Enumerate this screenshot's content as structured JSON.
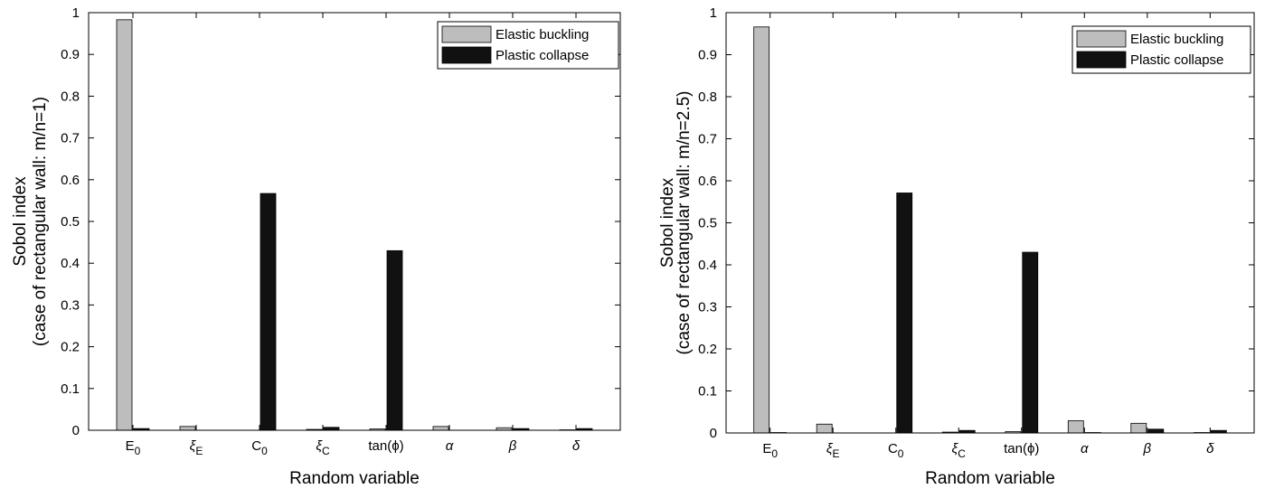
{
  "colors": {
    "elastic": "#bdbdbd",
    "plastic": "#111111",
    "axis": "#000000",
    "background": "#ffffff"
  },
  "chart_data": [
    {
      "type": "bar",
      "categories": [
        {
          "base": "E",
          "sub": "0"
        },
        {
          "base": "ξ",
          "sub": "E"
        },
        {
          "base": "C",
          "sub": "0"
        },
        {
          "base": "ξ",
          "sub": "C"
        },
        {
          "base": "tan(ϕ)",
          "sub": ""
        },
        {
          "base": "α",
          "sub": ""
        },
        {
          "base": "β",
          "sub": ""
        },
        {
          "base": "δ",
          "sub": ""
        }
      ],
      "series": [
        {
          "name": "Elastic buckling",
          "values": [
            0.983,
            0.009,
            0.0,
            0.002,
            0.003,
            0.009,
            0.006,
            0.001
          ]
        },
        {
          "name": "Plastic collapse",
          "values": [
            0.004,
            0.0,
            0.567,
            0.007,
            0.43,
            0.0,
            0.004,
            0.004
          ]
        }
      ],
      "xlabel": "Random variable",
      "ylabel": [
        "Sobol index",
        "(case of rectangular wall: m/n=1)"
      ],
      "ylim": [
        0,
        1
      ],
      "yticks": [
        "0",
        "0.1",
        "0.2",
        "0.3",
        "0.4",
        "0.5",
        "0.6",
        "0.7",
        "0.8",
        "0.9",
        "1"
      ],
      "legend_position": "top-right",
      "grid": false
    },
    {
      "type": "bar",
      "categories": [
        {
          "base": "E",
          "sub": "0"
        },
        {
          "base": "ξ",
          "sub": "E"
        },
        {
          "base": "C",
          "sub": "0"
        },
        {
          "base": "ξ",
          "sub": "C"
        },
        {
          "base": "tan(ϕ)",
          "sub": ""
        },
        {
          "base": "α",
          "sub": ""
        },
        {
          "base": "β",
          "sub": ""
        },
        {
          "base": "δ",
          "sub": ""
        }
      ],
      "series": [
        {
          "name": "Elastic buckling",
          "values": [
            0.966,
            0.021,
            0.0,
            0.002,
            0.003,
            0.029,
            0.023,
            0.001
          ]
        },
        {
          "name": "Plastic collapse",
          "values": [
            0.001,
            0.0,
            0.571,
            0.006,
            0.43,
            0.001,
            0.009,
            0.006
          ]
        }
      ],
      "xlabel": "Random variable",
      "ylabel": [
        "Sobol index",
        "(case of rectangular wall: m/n=2.5)"
      ],
      "ylim": [
        0,
        1
      ],
      "yticks": [
        "0",
        "0.1",
        "0.2",
        "0.3",
        "0.4",
        "0.5",
        "0.6",
        "0.7",
        "0.8",
        "0.9",
        "1"
      ],
      "legend_position": "top-right",
      "grid": false
    }
  ]
}
